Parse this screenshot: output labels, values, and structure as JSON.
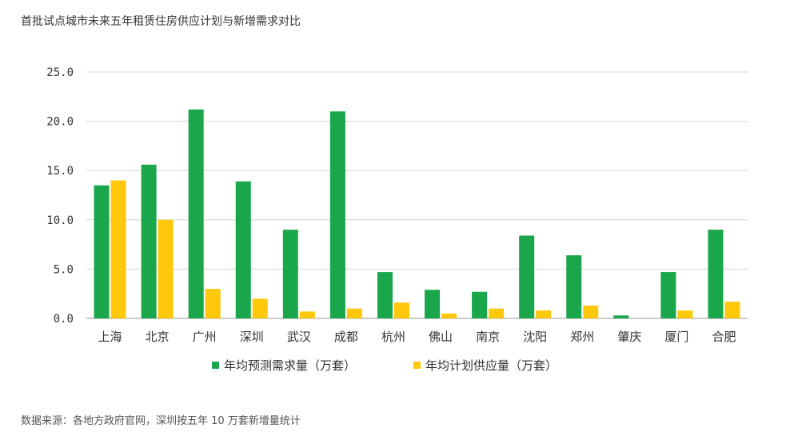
{
  "title": "首批试点城市未来五年租赁住房供应计划与新增需求对比",
  "source": "数据来源：各地方政府官网，深圳按五年 10 万套新增量统计",
  "chart_data": {
    "type": "bar",
    "categories": [
      "上海",
      "北京",
      "广州",
      "深圳",
      "武汉",
      "成都",
      "杭州",
      "佛山",
      "南京",
      "沈阳",
      "郑州",
      "肇庆",
      "厦门",
      "合肥"
    ],
    "series": [
      {
        "name": "年均预测需求量（万套）",
        "color": "#1aa64a",
        "values": [
          13.5,
          15.6,
          21.2,
          13.9,
          9.0,
          21.0,
          4.7,
          2.9,
          2.7,
          8.4,
          6.4,
          0.3,
          4.7,
          9.0
        ]
      },
      {
        "name": "年均计划供应量（万套）",
        "color": "#ffc80a",
        "values": [
          14.0,
          10.0,
          3.0,
          2.0,
          0.7,
          1.0,
          1.6,
          0.5,
          1.0,
          0.8,
          1.3,
          0.0,
          0.8,
          1.7
        ]
      }
    ],
    "yticks": [
      "25.0",
      "20.0",
      "15.0",
      "10.0",
      "5.0",
      "0.0"
    ],
    "ylim": [
      0,
      25
    ],
    "grid": true,
    "legend_position": "bottom"
  }
}
